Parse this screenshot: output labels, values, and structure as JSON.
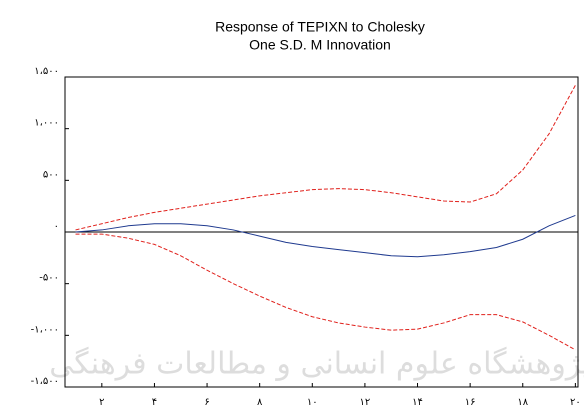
{
  "chart_data": {
    "type": "line",
    "title": [
      "Response of TEPIXN to Cholesky",
      "One S.D. M Innovation"
    ],
    "watermark": "پژوهشگاه علوم انسانی و مطالعات فرهنگی",
    "x": [
      1,
      2,
      3,
      4,
      5,
      6,
      7,
      8,
      9,
      10,
      11,
      12,
      13,
      14,
      15,
      16,
      17,
      18,
      19,
      20
    ],
    "series": [
      {
        "color": "#1f3a8f",
        "dash": false,
        "values": [
          0,
          20,
          60,
          80,
          80,
          60,
          20,
          -40,
          -100,
          -140,
          -170,
          -200,
          -230,
          -240,
          -220,
          -190,
          -150,
          -70,
          60,
          160
        ]
      },
      {
        "color": "#e0201b",
        "dash": true,
        "values": [
          20,
          80,
          140,
          190,
          230,
          270,
          310,
          350,
          380,
          410,
          420,
          410,
          380,
          340,
          300,
          290,
          370,
          600,
          950,
          1420
        ]
      },
      {
        "color": "#e0201b",
        "dash": true,
        "values": [
          -20,
          -20,
          -60,
          -120,
          -230,
          -370,
          -500,
          -620,
          -730,
          -820,
          -880,
          -920,
          -950,
          -940,
          -880,
          -800,
          -800,
          -870,
          -1000,
          -1140
        ]
      }
    ],
    "xlim": [
      0.6,
      20.1
    ],
    "ylim": [
      -1500,
      1500
    ],
    "xticks": [
      {
        "value": 2,
        "label": "۲"
      },
      {
        "value": 4,
        "label": "۴"
      },
      {
        "value": 6,
        "label": "۶"
      },
      {
        "value": 8,
        "label": "۸"
      },
      {
        "value": 10,
        "label": "۱۰"
      },
      {
        "value": 12,
        "label": "۱۲"
      },
      {
        "value": 14,
        "label": "۱۴"
      },
      {
        "value": 16,
        "label": "۱۶"
      },
      {
        "value": 18,
        "label": "۱۸"
      },
      {
        "value": 20,
        "label": "۲۰"
      }
    ],
    "yticks": [
      {
        "value": 1500,
        "label": "۱،۵۰۰"
      },
      {
        "value": 1000,
        "label": "۱،۰۰۰"
      },
      {
        "value": 500,
        "label": "۵۰۰"
      },
      {
        "value": 0,
        "label": "۰"
      },
      {
        "value": -500,
        "label": "-۵۰۰"
      },
      {
        "value": -1000,
        "label": "-۱،۰۰۰"
      },
      {
        "value": -1500,
        "label": "-۱،۵۰۰"
      }
    ],
    "zero_line": true
  }
}
